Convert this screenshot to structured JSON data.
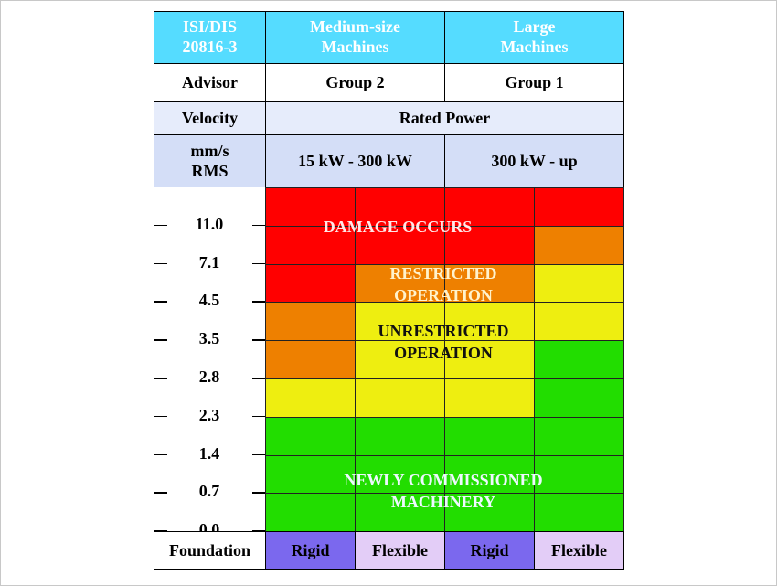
{
  "header": {
    "standard": "ISI/DIS\n20816-3",
    "medium": "Medium-size\nMachines",
    "large": "Large\nMachines",
    "advisor_label": "Advisor",
    "group2": "Group 2",
    "group1": "Group 1",
    "velocity_label": "Velocity",
    "rated_power": "Rated Power",
    "unit": "mm/s\nRMS",
    "range_medium": "15 kW - 300 kW",
    "range_large": "300 kW - up"
  },
  "scale": [
    "11.0",
    "7.1",
    "4.5",
    "3.5",
    "2.8",
    "2.3",
    "1.4",
    "0.7",
    "0.0"
  ],
  "zones": {
    "damage": "DAMAGE OCCURS",
    "restricted": "RESTRICTED\nOPERATION",
    "unrestricted": "UNRESTRICTED\nOPERATION",
    "new": "NEWLY COMMISSIONED\nMACHINERY"
  },
  "colors": {
    "damage": "#ff0000",
    "restricted": "#ee8000",
    "unrestricted": "#eeee10",
    "new": "#22dd00",
    "header_blue": "#55dcff",
    "rigid_bg": "#7b68ee",
    "flexible_bg": "#e3cdf7"
  },
  "columns_zone_levels": {
    "medium_rigid": {
      "restricted_above": "4.5",
      "unrestricted_above": "2.8",
      "new_below": "2.3"
    },
    "medium_flexible": {
      "restricted_above": "7.1",
      "unrestricted_above": "4.5",
      "new_below": "2.3"
    },
    "large_rigid": {
      "restricted_above": "7.1",
      "unrestricted_above": "4.5",
      "new_below": "2.3"
    },
    "large_flexible": {
      "restricted_above": "11.0",
      "unrestricted_above": "7.1",
      "new_below": "3.5"
    }
  },
  "footer": {
    "label": "Foundation",
    "columns": [
      "Rigid",
      "Flexible",
      "Rigid",
      "Flexible"
    ]
  }
}
